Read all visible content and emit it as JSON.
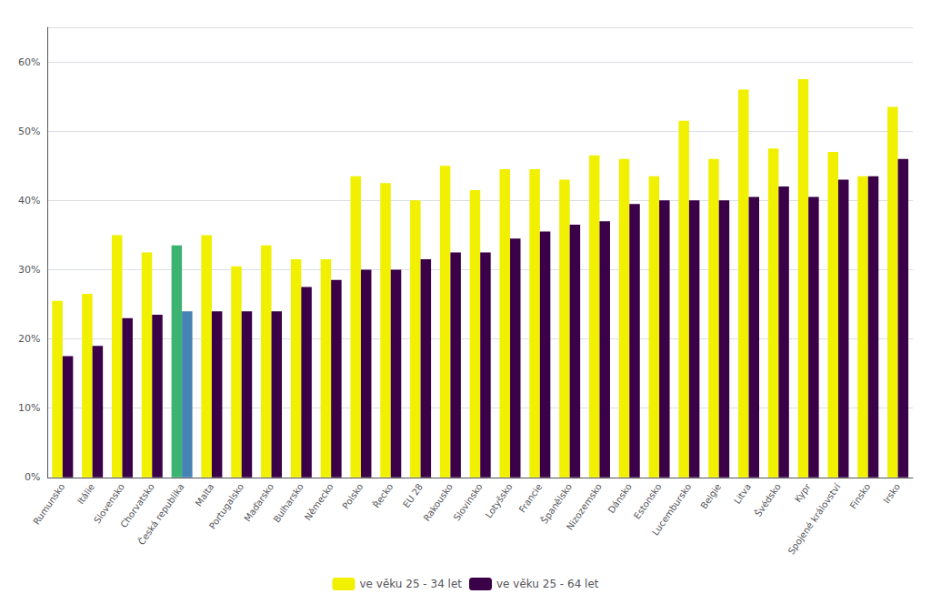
{
  "chart_data": {
    "type": "bar",
    "categories": [
      "Rumunsko",
      "Itálie",
      "Slovensko",
      "Chorvatsko",
      "Česká republika",
      "Malta",
      "Portugalsko",
      "Maďarsko",
      "Bulharsko",
      "Německo",
      "Polsko",
      "Řecko",
      "EU 28",
      "Rakousko",
      "Slovinsko",
      "Lotyšsko",
      "Francie",
      "Španělsko",
      "Nizozemsko",
      "Dánsko",
      "Estonsko",
      "Lucembursko",
      "Belgie",
      "Litva",
      "Švédsko",
      "Kypr",
      "Spojené království",
      "Finsko",
      "Irsko"
    ],
    "series": [
      {
        "name": "ve věku 25 - 34 let",
        "color": "#f0f000",
        "colors": [
          "#f0f000",
          "#f0f000",
          "#f0f000",
          "#f0f000",
          "#3cb371",
          "#f0f000",
          "#f0f000",
          "#f0f000",
          "#f0f000",
          "#f0f000",
          "#f0f000",
          "#f0f000",
          "#f0f000",
          "#f0f000",
          "#f0f000",
          "#f0f000",
          "#f0f000",
          "#f0f000",
          "#f0f000",
          "#f0f000",
          "#f0f000",
          "#f0f000",
          "#f0f000",
          "#f0f000",
          "#f0f000",
          "#f0f000",
          "#f0f000",
          "#f0f000",
          "#f0f000"
        ],
        "values": [
          25.5,
          26.5,
          35.0,
          32.5,
          33.5,
          35.0,
          30.5,
          33.5,
          31.5,
          31.5,
          43.5,
          42.5,
          40.0,
          45.0,
          41.5,
          44.5,
          44.5,
          43.0,
          46.5,
          46.0,
          43.5,
          51.5,
          46.0,
          56.0,
          47.5,
          57.5,
          47.0,
          43.5,
          53.5
        ]
      },
      {
        "name": "ve věku 25 - 64 let",
        "color": "#3a0048",
        "colors": [
          "#3a0048",
          "#3a0048",
          "#3a0048",
          "#3a0048",
          "#4682b4",
          "#3a0048",
          "#3a0048",
          "#3a0048",
          "#3a0048",
          "#3a0048",
          "#3a0048",
          "#3a0048",
          "#3a0048",
          "#3a0048",
          "#3a0048",
          "#3a0048",
          "#3a0048",
          "#3a0048",
          "#3a0048",
          "#3a0048",
          "#3a0048",
          "#3a0048",
          "#3a0048",
          "#3a0048",
          "#3a0048",
          "#3a0048",
          "#3a0048",
          "#3a0048",
          "#3a0048"
        ],
        "values": [
          17.5,
          19.0,
          23.0,
          23.5,
          24.0,
          24.0,
          24.0,
          24.0,
          27.5,
          28.5,
          30.0,
          30.0,
          31.5,
          32.5,
          32.5,
          34.5,
          35.5,
          36.5,
          37.0,
          39.5,
          40.0,
          40.0,
          40.0,
          40.5,
          42.0,
          40.5,
          43.0,
          43.5,
          46.0
        ]
      }
    ],
    "ylim": [
      0,
      65
    ],
    "yticks": [
      {
        "value": 0,
        "label": "0%"
      },
      {
        "value": 10,
        "label": "10%"
      },
      {
        "value": 20,
        "label": "20%"
      },
      {
        "value": 30,
        "label": "30%"
      },
      {
        "value": 40,
        "label": "40%"
      },
      {
        "value": 50,
        "label": "50%"
      },
      {
        "value": 60,
        "label": "60%"
      }
    ],
    "grid": true,
    "legend": "bottom"
  }
}
